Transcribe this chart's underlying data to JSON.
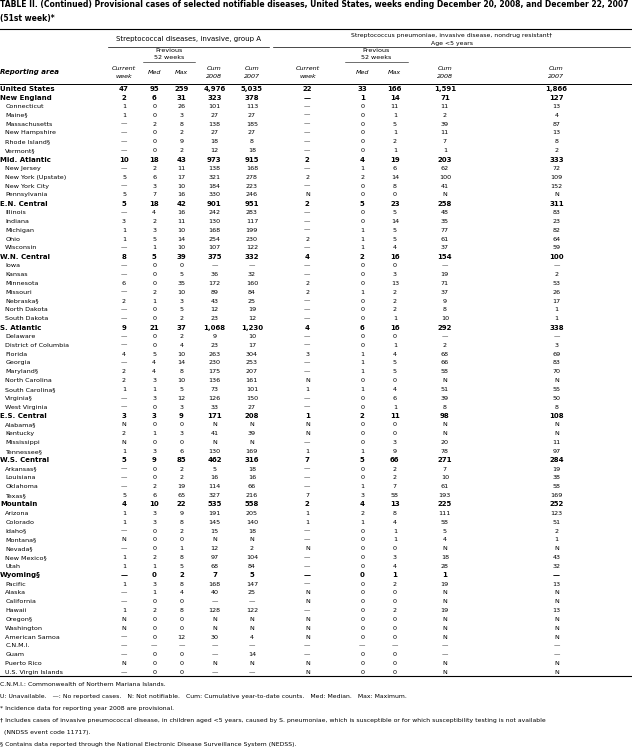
{
  "title_line1": "TABLE II. (Continued) Provisional cases of selected notifiable diseases, United States, weeks ending December 20, 2008, and December 22, 2007",
  "title_line2": "(51st week)*",
  "col_group1": "Streptococcal diseases, invasive, group A",
  "col_group2_line1": "Streptococcus pneumoniae, invasive disease, nondrug resistant†",
  "col_group2_line2": "Age <5 years",
  "reporting_area_header": "Reporting area",
  "rows": [
    [
      "United States",
      "47",
      "95",
      "259",
      "4,976",
      "5,035",
      "22",
      "33",
      "166",
      "1,591",
      "1,866"
    ],
    [
      "New England",
      "2",
      "6",
      "31",
      "323",
      "378",
      "—",
      "1",
      "14",
      "71",
      "127"
    ],
    [
      "Connecticut",
      "1",
      "0",
      "26",
      "101",
      "113",
      "—",
      "0",
      "11",
      "11",
      "13"
    ],
    [
      "Maine§",
      "1",
      "0",
      "3",
      "27",
      "27",
      "—",
      "0",
      "1",
      "2",
      "4"
    ],
    [
      "Massachusetts",
      "—",
      "2",
      "8",
      "138",
      "185",
      "—",
      "0",
      "5",
      "39",
      "87"
    ],
    [
      "New Hampshire",
      "—",
      "0",
      "2",
      "27",
      "27",
      "—",
      "0",
      "1",
      "11",
      "13"
    ],
    [
      "Rhode Island§",
      "—",
      "0",
      "9",
      "18",
      "8",
      "—",
      "0",
      "2",
      "7",
      "8"
    ],
    [
      "Vermont§",
      "—",
      "0",
      "2",
      "12",
      "18",
      "—",
      "0",
      "1",
      "1",
      "2"
    ],
    [
      "Mid. Atlantic",
      "10",
      "18",
      "43",
      "973",
      "915",
      "2",
      "4",
      "19",
      "203",
      "333"
    ],
    [
      "New Jersey",
      "—",
      "2",
      "11",
      "138",
      "168",
      "—",
      "1",
      "6",
      "62",
      "72"
    ],
    [
      "New York (Upstate)",
      "5",
      "6",
      "17",
      "321",
      "278",
      "2",
      "2",
      "14",
      "100",
      "109"
    ],
    [
      "New York City",
      "—",
      "3",
      "10",
      "184",
      "223",
      "—",
      "0",
      "8",
      "41",
      "152"
    ],
    [
      "Pennsylvania",
      "5",
      "7",
      "16",
      "330",
      "246",
      "N",
      "0",
      "0",
      "N",
      "N"
    ],
    [
      "E.N. Central",
      "5",
      "18",
      "42",
      "901",
      "951",
      "2",
      "5",
      "23",
      "258",
      "311"
    ],
    [
      "Illinois",
      "—",
      "4",
      "16",
      "242",
      "283",
      "—",
      "0",
      "5",
      "48",
      "83"
    ],
    [
      "Indiana",
      "3",
      "2",
      "11",
      "130",
      "117",
      "—",
      "0",
      "14",
      "35",
      "23"
    ],
    [
      "Michigan",
      "1",
      "3",
      "10",
      "168",
      "199",
      "—",
      "1",
      "5",
      "77",
      "82"
    ],
    [
      "Ohio",
      "1",
      "5",
      "14",
      "254",
      "230",
      "2",
      "1",
      "5",
      "61",
      "64"
    ],
    [
      "Wisconsin",
      "—",
      "1",
      "10",
      "107",
      "122",
      "—",
      "1",
      "4",
      "37",
      "59"
    ],
    [
      "W.N. Central",
      "8",
      "5",
      "39",
      "375",
      "332",
      "4",
      "2",
      "16",
      "154",
      "100"
    ],
    [
      "Iowa",
      "—",
      "0",
      "0",
      "—",
      "—",
      "—",
      "0",
      "0",
      "—",
      "—"
    ],
    [
      "Kansas",
      "—",
      "0",
      "5",
      "36",
      "32",
      "—",
      "0",
      "3",
      "19",
      "2"
    ],
    [
      "Minnesota",
      "6",
      "0",
      "35",
      "172",
      "160",
      "2",
      "0",
      "13",
      "71",
      "53"
    ],
    [
      "Missouri",
      "—",
      "2",
      "10",
      "89",
      "84",
      "2",
      "1",
      "2",
      "37",
      "26"
    ],
    [
      "Nebraska§",
      "2",
      "1",
      "3",
      "43",
      "25",
      "—",
      "0",
      "2",
      "9",
      "17"
    ],
    [
      "North Dakota",
      "—",
      "0",
      "5",
      "12",
      "19",
      "—",
      "0",
      "2",
      "8",
      "1"
    ],
    [
      "South Dakota",
      "—",
      "0",
      "2",
      "23",
      "12",
      "—",
      "0",
      "1",
      "10",
      "1"
    ],
    [
      "S. Atlantic",
      "9",
      "21",
      "37",
      "1,068",
      "1,230",
      "4",
      "6",
      "16",
      "292",
      "338"
    ],
    [
      "Delaware",
      "—",
      "0",
      "2",
      "9",
      "10",
      "—",
      "0",
      "0",
      "—",
      "—"
    ],
    [
      "District of Columbia",
      "—",
      "0",
      "4",
      "23",
      "17",
      "—",
      "0",
      "1",
      "2",
      "3"
    ],
    [
      "Florida",
      "4",
      "5",
      "10",
      "263",
      "304",
      "3",
      "1",
      "4",
      "68",
      "69"
    ],
    [
      "Georgia",
      "—",
      "4",
      "14",
      "230",
      "253",
      "—",
      "1",
      "5",
      "66",
      "83"
    ],
    [
      "Maryland§",
      "2",
      "4",
      "8",
      "175",
      "207",
      "—",
      "1",
      "5",
      "58",
      "70"
    ],
    [
      "North Carolina",
      "2",
      "3",
      "10",
      "136",
      "161",
      "N",
      "0",
      "0",
      "N",
      "N"
    ],
    [
      "South Carolina§",
      "1",
      "1",
      "5",
      "73",
      "101",
      "1",
      "1",
      "4",
      "51",
      "55"
    ],
    [
      "Virginia§",
      "—",
      "3",
      "12",
      "126",
      "150",
      "—",
      "0",
      "6",
      "39",
      "50"
    ],
    [
      "West Virginia",
      "—",
      "0",
      "3",
      "33",
      "27",
      "—",
      "0",
      "1",
      "8",
      "8"
    ],
    [
      "E.S. Central",
      "3",
      "3",
      "9",
      "171",
      "208",
      "1",
      "2",
      "11",
      "98",
      "108"
    ],
    [
      "Alabama§",
      "N",
      "0",
      "0",
      "N",
      "N",
      "N",
      "0",
      "0",
      "N",
      "N"
    ],
    [
      "Kentucky",
      "2",
      "1",
      "3",
      "41",
      "39",
      "N",
      "0",
      "0",
      "N",
      "N"
    ],
    [
      "Mississippi",
      "N",
      "0",
      "0",
      "N",
      "N",
      "—",
      "0",
      "3",
      "20",
      "11"
    ],
    [
      "Tennessee§",
      "1",
      "3",
      "6",
      "130",
      "169",
      "1",
      "1",
      "9",
      "78",
      "97"
    ],
    [
      "W.S. Central",
      "5",
      "9",
      "85",
      "462",
      "316",
      "7",
      "5",
      "66",
      "271",
      "284"
    ],
    [
      "Arkansas§",
      "—",
      "0",
      "2",
      "5",
      "18",
      "—",
      "0",
      "2",
      "7",
      "19"
    ],
    [
      "Louisiana",
      "—",
      "0",
      "2",
      "16",
      "16",
      "—",
      "0",
      "2",
      "10",
      "38"
    ],
    [
      "Oklahoma",
      "—",
      "2",
      "19",
      "114",
      "66",
      "—",
      "1",
      "7",
      "61",
      "58"
    ],
    [
      "Texas§",
      "5",
      "6",
      "65",
      "327",
      "216",
      "7",
      "3",
      "58",
      "193",
      "169"
    ],
    [
      "Mountain",
      "4",
      "10",
      "22",
      "535",
      "558",
      "2",
      "4",
      "13",
      "225",
      "252"
    ],
    [
      "Arizona",
      "1",
      "3",
      "9",
      "191",
      "205",
      "1",
      "2",
      "8",
      "111",
      "123"
    ],
    [
      "Colorado",
      "1",
      "3",
      "8",
      "145",
      "140",
      "1",
      "1",
      "4",
      "58",
      "51"
    ],
    [
      "Idaho§",
      "—",
      "0",
      "2",
      "15",
      "18",
      "—",
      "0",
      "1",
      "5",
      "2"
    ],
    [
      "Montana§",
      "N",
      "0",
      "0",
      "N",
      "N",
      "—",
      "0",
      "1",
      "4",
      "1"
    ],
    [
      "Nevada§",
      "—",
      "0",
      "1",
      "12",
      "2",
      "N",
      "0",
      "0",
      "N",
      "N"
    ],
    [
      "New Mexico§",
      "1",
      "2",
      "8",
      "97",
      "104",
      "—",
      "0",
      "3",
      "18",
      "43"
    ],
    [
      "Utah",
      "1",
      "1",
      "5",
      "68",
      "84",
      "—",
      "0",
      "4",
      "28",
      "32"
    ],
    [
      "Wyoming§",
      "—",
      "0",
      "2",
      "7",
      "5",
      "—",
      "0",
      "1",
      "1",
      "—"
    ],
    [
      "Pacific",
      "1",
      "3",
      "8",
      "168",
      "147",
      "—",
      "0",
      "2",
      "19",
      "13"
    ],
    [
      "Alaska",
      "—",
      "1",
      "4",
      "40",
      "25",
      "N",
      "0",
      "0",
      "N",
      "N"
    ],
    [
      "California",
      "—",
      "0",
      "0",
      "—",
      "—",
      "N",
      "0",
      "0",
      "N",
      "N"
    ],
    [
      "Hawaii",
      "1",
      "2",
      "8",
      "128",
      "122",
      "—",
      "0",
      "2",
      "19",
      "13"
    ],
    [
      "Oregon§",
      "N",
      "0",
      "0",
      "N",
      "N",
      "N",
      "0",
      "0",
      "N",
      "N"
    ],
    [
      "Washington",
      "N",
      "0",
      "0",
      "N",
      "N",
      "N",
      "0",
      "0",
      "N",
      "N"
    ],
    [
      "American Samoa",
      "—",
      "0",
      "12",
      "30",
      "4",
      "N",
      "0",
      "0",
      "N",
      "N"
    ],
    [
      "C.N.M.I.",
      "—",
      "—",
      "—",
      "—",
      "—",
      "—",
      "—",
      "—",
      "—",
      "—"
    ],
    [
      "Guam",
      "—",
      "0",
      "0",
      "—",
      "14",
      "—",
      "0",
      "0",
      "—",
      "—"
    ],
    [
      "Puerto Rico",
      "N",
      "0",
      "0",
      "N",
      "N",
      "N",
      "0",
      "0",
      "N",
      "N"
    ],
    [
      "U.S. Virgin Islands",
      "—",
      "0",
      "0",
      "—",
      "—",
      "N",
      "0",
      "0",
      "N",
      "N"
    ]
  ],
  "bold_rows": [
    0,
    1,
    8,
    13,
    19,
    27,
    37,
    42,
    47,
    55
  ],
  "footnotes": [
    "C.N.M.I.: Commonwealth of Northern Mariana Islands.",
    "U: Unavailable.   —: No reported cases.   N: Not notifiable.   Cum: Cumulative year-to-date counts.   Med: Median.   Max: Maximum.",
    "* Incidence data for reporting year 2008 are provisional.",
    "† Includes cases of invasive pneumococcal disease, in children aged <5 years, caused by S. pneumoniae, which is susceptible or for which susceptibility testing is not available",
    "  (NNDSS event code 11717).",
    "§ Contains data reported through the National Electronic Disease Surveillance System (NEDSS)."
  ]
}
